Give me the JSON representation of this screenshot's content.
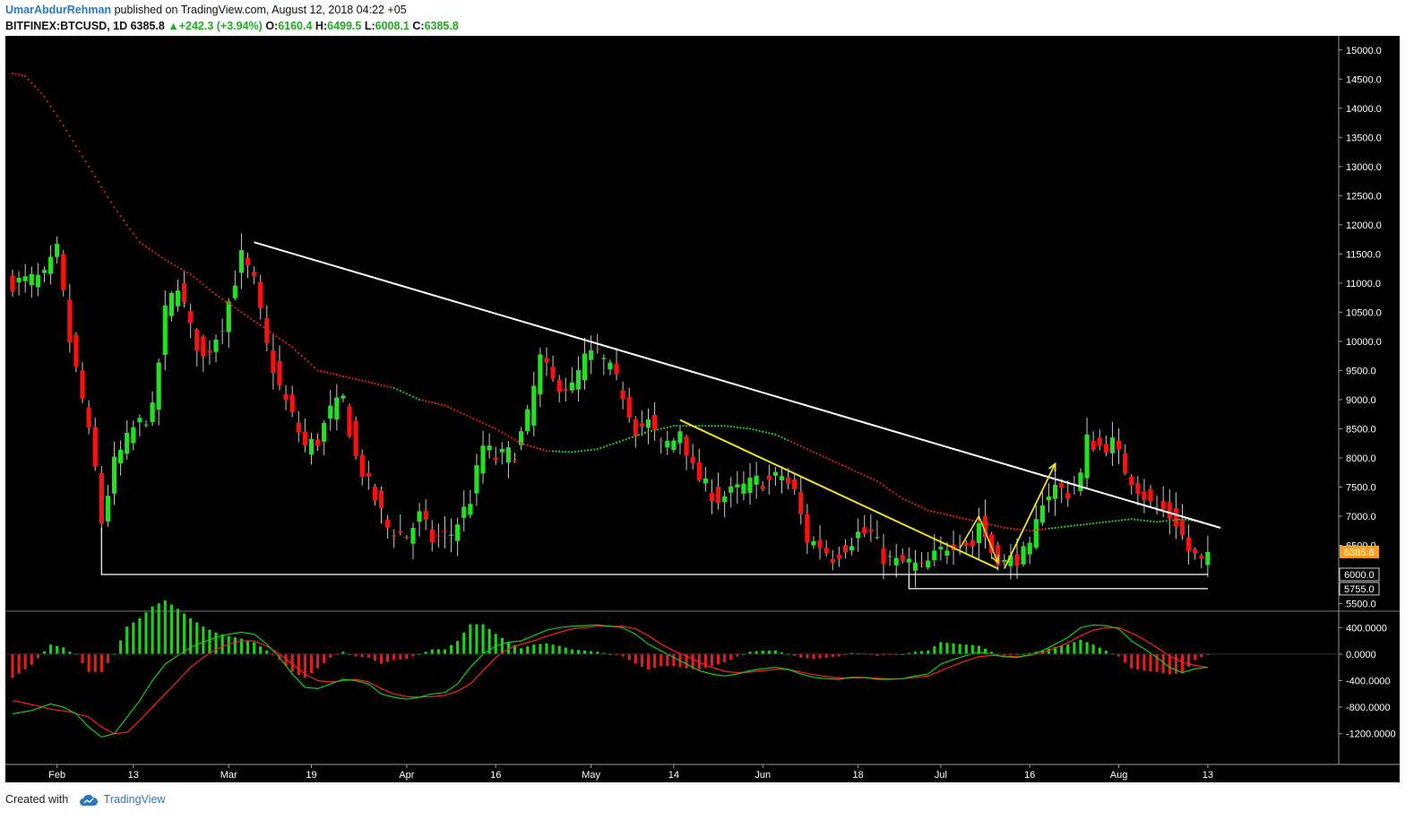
{
  "header": {
    "author": "UmarAbdurRehman",
    "published": "published on TradingView.com, August 12, 2018 04:22 +05",
    "symbol": "BITFINEX:BTCUSD, 1D",
    "last": "6385.8",
    "change": "+242.3 (+3.94%)",
    "up_arrow": "▲",
    "o_label": "O:",
    "o_value": "6160.4",
    "h_label": "H:",
    "h_value": "6499.5",
    "l_label": "L:",
    "l_value": "6008.1",
    "c_label": "C:",
    "c_value": "6385.8"
  },
  "footer": {
    "created_with": "Created with",
    "brand": "TradingView",
    "logo_icon": "tradingview-cloud-icon"
  },
  "colors": {
    "background": "#000000",
    "up": "#22e022",
    "down": "#ff1010",
    "wick": "#c8c8c8",
    "trendline": "#ffffff",
    "yellow": "#f2e51e",
    "ma_red": "#e31d1d",
    "ma_green": "#1fcf1f",
    "price_tag": "#ff9e1a",
    "macd_line": "#10d010",
    "signal_line": "#ff2020"
  },
  "chart_data": {
    "type": "candlestick",
    "symbol": "BITFINEX:BTCUSD",
    "interval": "1D",
    "price_axis": {
      "range": [
        5400,
        15150
      ],
      "ticks": [
        "15000.0",
        "14500.0",
        "14000.0",
        "13500.0",
        "13000.0",
        "12500.0",
        "12000.0",
        "11500.0",
        "11000.0",
        "10500.0",
        "10000.0",
        "9500.0",
        "9000.0",
        "8500.0",
        "8000.0",
        "7500.0",
        "7000.0",
        "6500.0",
        "6000.0",
        "5500.0"
      ],
      "tick_values": [
        15000,
        14500,
        14000,
        13500,
        13000,
        12500,
        12000,
        11500,
        11000,
        10500,
        10000,
        9500,
        9000,
        8500,
        8000,
        7500,
        7000,
        6500,
        6000,
        5500
      ]
    },
    "price_labels": [
      {
        "value": 6385.8,
        "text": "6385.8",
        "style": "last"
      },
      {
        "value": 6000,
        "text": "6000.0",
        "style": "level"
      },
      {
        "value": 5755,
        "text": "5755.0",
        "style": "level"
      }
    ],
    "x_ticks": [
      "Feb",
      "13",
      "Mar",
      "19",
      "Apr",
      "16",
      "May",
      "14",
      "Jun",
      "18",
      "Jul",
      "16",
      "Aug",
      "13"
    ],
    "x_tick_days": [
      7,
      19,
      34,
      47,
      62,
      76,
      91,
      104,
      118,
      133,
      146,
      160,
      174,
      188
    ],
    "first_day": 0,
    "last_day": 191,
    "keypoints": [
      [
        0,
        11000
      ],
      [
        5,
        11100
      ],
      [
        7,
        11550
      ],
      [
        9,
        10000
      ],
      [
        11,
        9000
      ],
      [
        13,
        7800
      ],
      [
        14,
        6900
      ],
      [
        16,
        7900
      ],
      [
        19,
        8500
      ],
      [
        22,
        8800
      ],
      [
        24,
        10500
      ],
      [
        26,
        11000
      ],
      [
        28,
        10200
      ],
      [
        30,
        9700
      ],
      [
        33,
        10300
      ],
      [
        36,
        11450
      ],
      [
        38,
        11000
      ],
      [
        40,
        9900
      ],
      [
        42,
        9200
      ],
      [
        44,
        8700
      ],
      [
        46,
        8200
      ],
      [
        48,
        8300
      ],
      [
        50,
        8800
      ],
      [
        52,
        9000
      ],
      [
        54,
        8000
      ],
      [
        57,
        7300
      ],
      [
        59,
        6800
      ],
      [
        62,
        6650
      ],
      [
        64,
        7000
      ],
      [
        66,
        6600
      ],
      [
        69,
        6700
      ],
      [
        72,
        7300
      ],
      [
        74,
        8200
      ],
      [
        76,
        8000
      ],
      [
        79,
        8100
      ],
      [
        81,
        8700
      ],
      [
        83,
        9700
      ],
      [
        85,
        9300
      ],
      [
        88,
        9200
      ],
      [
        90,
        9700
      ],
      [
        92,
        9800
      ],
      [
        94,
        9500
      ],
      [
        96,
        9100
      ],
      [
        98,
        8500
      ],
      [
        100,
        8600
      ],
      [
        102,
        8200
      ],
      [
        104,
        8300
      ],
      [
        105,
        8500
      ],
      [
        107,
        7800
      ],
      [
        109,
        7500
      ],
      [
        111,
        7300
      ],
      [
        113,
        7400
      ],
      [
        115,
        7500
      ],
      [
        117,
        7600
      ],
      [
        119,
        7600
      ],
      [
        121,
        7700
      ],
      [
        123,
        7400
      ],
      [
        125,
        6600
      ],
      [
        127,
        6500
      ],
      [
        129,
        6300
      ],
      [
        131,
        6500
      ],
      [
        133,
        6700
      ],
      [
        135,
        6700
      ],
      [
        137,
        6300
      ],
      [
        139,
        6200
      ],
      [
        141,
        6200
      ],
      [
        143,
        6100
      ],
      [
        145,
        6300
      ],
      [
        147,
        6500
      ],
      [
        149,
        6600
      ],
      [
        151,
        6500
      ],
      [
        152,
        6900
      ],
      [
        154,
        6400
      ],
      [
        156,
        6200
      ],
      [
        158,
        6300
      ],
      [
        160,
        6400
      ],
      [
        162,
        7300
      ],
      [
        164,
        7500
      ],
      [
        166,
        7400
      ],
      [
        168,
        7700
      ],
      [
        169,
        8300
      ],
      [
        171,
        8200
      ],
      [
        173,
        8250
      ],
      [
        175,
        7800
      ],
      [
        177,
        7500
      ],
      [
        179,
        7200
      ],
      [
        181,
        7100
      ],
      [
        183,
        6900
      ],
      [
        185,
        6400
      ],
      [
        187,
        6200
      ],
      [
        188,
        6385.8
      ]
    ],
    "candle_seed": 7,
    "ma_red_points": [
      [
        0,
        14600
      ],
      [
        2,
        14550
      ],
      [
        5,
        14200
      ],
      [
        8,
        13700
      ],
      [
        12,
        13000
      ],
      [
        16,
        12300
      ],
      [
        20,
        11700
      ],
      [
        24,
        11400
      ],
      [
        28,
        11150
      ],
      [
        32,
        10800
      ],
      [
        36,
        10500
      ],
      [
        40,
        10200
      ],
      [
        44,
        9900
      ],
      [
        48,
        9500
      ],
      [
        52,
        9400
      ],
      [
        56,
        9300
      ],
      [
        60,
        9200
      ],
      [
        64,
        9000
      ],
      [
        68,
        8900
      ],
      [
        72,
        8700
      ],
      [
        76,
        8500
      ],
      [
        80,
        8250
      ],
      [
        84,
        8120
      ],
      [
        88,
        8100
      ],
      [
        92,
        8150
      ],
      [
        96,
        8300
      ],
      [
        100,
        8450
      ],
      [
        104,
        8550
      ],
      [
        108,
        8550
      ],
      [
        112,
        8550
      ],
      [
        116,
        8500
      ],
      [
        120,
        8400
      ],
      [
        124,
        8200
      ],
      [
        128,
        8000
      ],
      [
        132,
        7800
      ],
      [
        136,
        7600
      ],
      [
        140,
        7300
      ],
      [
        144,
        7100
      ],
      [
        148,
        7000
      ],
      [
        152,
        6900
      ],
      [
        156,
        6800
      ],
      [
        160,
        6750
      ],
      [
        164,
        6800
      ],
      [
        168,
        6850
      ],
      [
        172,
        6900
      ],
      [
        176,
        6950
      ],
      [
        180,
        6900
      ],
      [
        184,
        6950
      ],
      [
        187,
        6900
      ]
    ],
    "ma_green_ranges": [
      [
        60,
        64
      ],
      [
        85,
        122
      ],
      [
        163,
        187
      ]
    ],
    "trendlines": [
      {
        "color": "white",
        "width": 2,
        "points": [
          [
            38,
            11700
          ],
          [
            190,
            6800
          ]
        ]
      },
      {
        "color": "white",
        "width": 1.2,
        "points": [
          [
            14,
            6800
          ],
          [
            14,
            6000
          ],
          [
            188,
            6000
          ]
        ]
      },
      {
        "color": "white",
        "width": 1.2,
        "points": [
          [
            141,
            6000
          ],
          [
            141,
            5755
          ],
          [
            188,
            5755
          ]
        ]
      },
      {
        "color": "yellow",
        "width": 2,
        "points": [
          [
            105,
            8650
          ],
          [
            155,
            6100
          ]
        ]
      },
      {
        "color": "yellow",
        "width": 1.6,
        "arrow": true,
        "points": [
          [
            149,
            6450
          ],
          [
            152,
            7000
          ],
          [
            155,
            6200
          ]
        ]
      },
      {
        "color": "yellow",
        "width": 1.8,
        "arrow": true,
        "points": [
          [
            156,
            6100
          ],
          [
            164,
            7900
          ]
        ]
      }
    ],
    "macd": {
      "axis_range": [
        -1650,
        620
      ],
      "ticks": [
        "400.0000",
        "0.0000",
        "-400.0000",
        "-800.0000",
        "-1200.0000"
      ],
      "tick_values": [
        400,
        0,
        -400,
        -800,
        -1200
      ],
      "line_points": [
        [
          0,
          -900
        ],
        [
          3,
          -850
        ],
        [
          6,
          -750
        ],
        [
          8,
          -800
        ],
        [
          10,
          -900
        ],
        [
          12,
          -1100
        ],
        [
          14,
          -1250
        ],
        [
          16,
          -1200
        ],
        [
          18,
          -950
        ],
        [
          20,
          -700
        ],
        [
          22,
          -400
        ],
        [
          24,
          -150
        ],
        [
          26,
          -20
        ],
        [
          28,
          100
        ],
        [
          30,
          180
        ],
        [
          32,
          250
        ],
        [
          34,
          300
        ],
        [
          36,
          330
        ],
        [
          38,
          300
        ],
        [
          40,
          150
        ],
        [
          42,
          -50
        ],
        [
          44,
          -300
        ],
        [
          46,
          -500
        ],
        [
          48,
          -520
        ],
        [
          50,
          -450
        ],
        [
          52,
          -380
        ],
        [
          54,
          -400
        ],
        [
          56,
          -450
        ],
        [
          58,
          -600
        ],
        [
          60,
          -650
        ],
        [
          62,
          -680
        ],
        [
          64,
          -650
        ],
        [
          66,
          -600
        ],
        [
          68,
          -580
        ],
        [
          70,
          -450
        ],
        [
          72,
          -200
        ],
        [
          74,
          0
        ],
        [
          76,
          120
        ],
        [
          78,
          180
        ],
        [
          80,
          200
        ],
        [
          82,
          280
        ],
        [
          84,
          360
        ],
        [
          86,
          400
        ],
        [
          88,
          420
        ],
        [
          90,
          430
        ],
        [
          92,
          440
        ],
        [
          94,
          420
        ],
        [
          96,
          400
        ],
        [
          98,
          300
        ],
        [
          100,
          150
        ],
        [
          102,
          50
        ],
        [
          104,
          -50
        ],
        [
          106,
          -150
        ],
        [
          108,
          -250
        ],
        [
          110,
          -300
        ],
        [
          112,
          -330
        ],
        [
          114,
          -300
        ],
        [
          116,
          -250
        ],
        [
          118,
          -220
        ],
        [
          120,
          -200
        ],
        [
          122,
          -230
        ],
        [
          124,
          -300
        ],
        [
          126,
          -350
        ],
        [
          128,
          -370
        ],
        [
          130,
          -380
        ],
        [
          132,
          -350
        ],
        [
          134,
          -350
        ],
        [
          136,
          -380
        ],
        [
          138,
          -380
        ],
        [
          140,
          -370
        ],
        [
          142,
          -330
        ],
        [
          144,
          -300
        ],
        [
          146,
          -150
        ],
        [
          148,
          -80
        ],
        [
          150,
          -20
        ],
        [
          152,
          30
        ],
        [
          154,
          0
        ],
        [
          156,
          -40
        ],
        [
          158,
          -50
        ],
        [
          160,
          -10
        ],
        [
          162,
          50
        ],
        [
          164,
          150
        ],
        [
          166,
          250
        ],
        [
          168,
          400
        ],
        [
          170,
          440
        ],
        [
          172,
          430
        ],
        [
          174,
          380
        ],
        [
          176,
          200
        ],
        [
          178,
          80
        ],
        [
          180,
          -50
        ],
        [
          182,
          -200
        ],
        [
          184,
          -280
        ],
        [
          186,
          -220
        ],
        [
          188,
          -200
        ]
      ],
      "signal_points": [
        [
          0,
          -700
        ],
        [
          3,
          -760
        ],
        [
          6,
          -830
        ],
        [
          9,
          -870
        ],
        [
          12,
          -950
        ],
        [
          14,
          -1100
        ],
        [
          16,
          -1200
        ],
        [
          18,
          -1180
        ],
        [
          20,
          -1000
        ],
        [
          22,
          -800
        ],
        [
          24,
          -600
        ],
        [
          26,
          -400
        ],
        [
          28,
          -200
        ],
        [
          30,
          -50
        ],
        [
          32,
          70
        ],
        [
          34,
          150
        ],
        [
          36,
          200
        ],
        [
          38,
          200
        ],
        [
          40,
          120
        ],
        [
          42,
          0
        ],
        [
          44,
          -150
        ],
        [
          46,
          -300
        ],
        [
          48,
          -400
        ],
        [
          50,
          -420
        ],
        [
          52,
          -400
        ],
        [
          54,
          -380
        ],
        [
          56,
          -420
        ],
        [
          58,
          -520
        ],
        [
          60,
          -600
        ],
        [
          62,
          -640
        ],
        [
          64,
          -650
        ],
        [
          66,
          -640
        ],
        [
          68,
          -620
        ],
        [
          70,
          -560
        ],
        [
          72,
          -450
        ],
        [
          74,
          -250
        ],
        [
          76,
          -50
        ],
        [
          78,
          80
        ],
        [
          80,
          150
        ],
        [
          82,
          200
        ],
        [
          84,
          270
        ],
        [
          86,
          330
        ],
        [
          88,
          380
        ],
        [
          90,
          400
        ],
        [
          92,
          420
        ],
        [
          94,
          420
        ],
        [
          96,
          420
        ],
        [
          98,
          380
        ],
        [
          100,
          280
        ],
        [
          102,
          150
        ],
        [
          104,
          50
        ],
        [
          106,
          -30
        ],
        [
          108,
          -120
        ],
        [
          110,
          -200
        ],
        [
          112,
          -260
        ],
        [
          114,
          -280
        ],
        [
          116,
          -270
        ],
        [
          118,
          -250
        ],
        [
          120,
          -230
        ],
        [
          122,
          -230
        ],
        [
          124,
          -270
        ],
        [
          126,
          -310
        ],
        [
          128,
          -340
        ],
        [
          130,
          -360
        ],
        [
          132,
          -360
        ],
        [
          134,
          -355
        ],
        [
          136,
          -365
        ],
        [
          138,
          -375
        ],
        [
          140,
          -370
        ],
        [
          142,
          -350
        ],
        [
          144,
          -330
        ],
        [
          146,
          -250
        ],
        [
          148,
          -170
        ],
        [
          150,
          -100
        ],
        [
          152,
          -40
        ],
        [
          154,
          -20
        ],
        [
          156,
          -30
        ],
        [
          158,
          -40
        ],
        [
          160,
          -20
        ],
        [
          162,
          20
        ],
        [
          164,
          90
        ],
        [
          166,
          170
        ],
        [
          168,
          280
        ],
        [
          170,
          360
        ],
        [
          172,
          400
        ],
        [
          174,
          400
        ],
        [
          176,
          320
        ],
        [
          178,
          220
        ],
        [
          180,
          100
        ],
        [
          182,
          -30
        ],
        [
          184,
          -120
        ],
        [
          186,
          -170
        ],
        [
          188,
          -200
        ]
      ]
    }
  }
}
